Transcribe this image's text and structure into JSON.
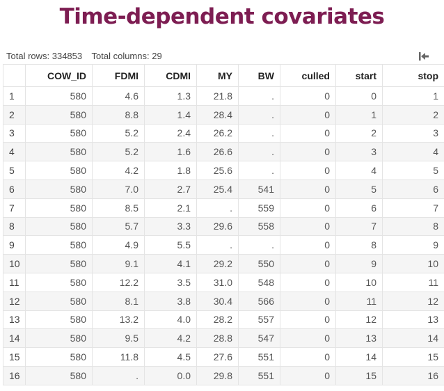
{
  "title": "Time-dependent covariates",
  "summary": {
    "rows_text": "Total rows: 334853",
    "cols_text": "Total columns: 29"
  },
  "export_icon": "export-icon",
  "columns": [
    "COW_ID",
    "FDMI",
    "CDMI",
    "MY",
    "BW",
    "culled",
    "start",
    "stop"
  ],
  "rows": [
    [
      "1",
      "580",
      "4.6",
      "1.3",
      "21.8",
      ".",
      "0",
      "0",
      "1"
    ],
    [
      "2",
      "580",
      "8.8",
      "1.4",
      "28.4",
      ".",
      "0",
      "1",
      "2"
    ],
    [
      "3",
      "580",
      "5.2",
      "2.4",
      "26.2",
      ".",
      "0",
      "2",
      "3"
    ],
    [
      "4",
      "580",
      "5.2",
      "1.6",
      "26.6",
      ".",
      "0",
      "3",
      "4"
    ],
    [
      "5",
      "580",
      "4.2",
      "1.8",
      "25.6",
      ".",
      "0",
      "4",
      "5"
    ],
    [
      "6",
      "580",
      "7.0",
      "2.7",
      "25.4",
      "541",
      "0",
      "5",
      "6"
    ],
    [
      "7",
      "580",
      "8.5",
      "2.1",
      ".",
      "559",
      "0",
      "6",
      "7"
    ],
    [
      "8",
      "580",
      "5.7",
      "3.3",
      "29.6",
      "558",
      "0",
      "7",
      "8"
    ],
    [
      "9",
      "580",
      "4.9",
      "5.5",
      ".",
      ".",
      "0",
      "8",
      "9"
    ],
    [
      "10",
      "580",
      "9.1",
      "4.1",
      "29.2",
      "550",
      "0",
      "9",
      "10"
    ],
    [
      "11",
      "580",
      "12.2",
      "3.5",
      "31.0",
      "548",
      "0",
      "10",
      "11"
    ],
    [
      "12",
      "580",
      "8.1",
      "3.8",
      "30.4",
      "566",
      "0",
      "11",
      "12"
    ],
    [
      "13",
      "580",
      "13.2",
      "4.0",
      "28.2",
      "557",
      "0",
      "12",
      "13"
    ],
    [
      "14",
      "580",
      "9.5",
      "4.2",
      "28.8",
      "547",
      "0",
      "13",
      "14"
    ],
    [
      "15",
      "580",
      "11.8",
      "4.5",
      "27.6",
      "551",
      "0",
      "14",
      "15"
    ],
    [
      "16",
      "580",
      ".",
      "0.0",
      "29.8",
      "551",
      "0",
      "15",
      "16"
    ]
  ]
}
